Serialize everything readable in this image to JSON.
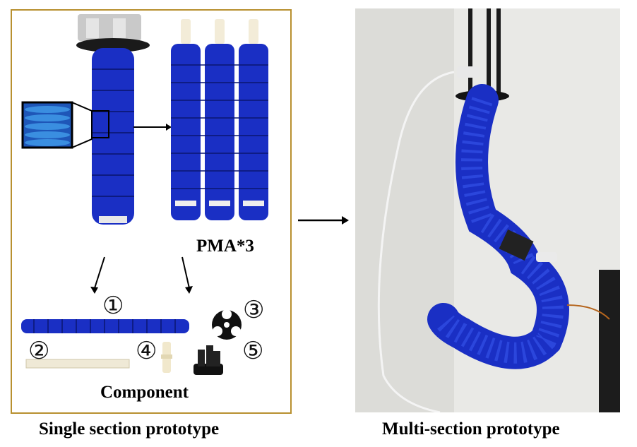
{
  "labels": {
    "pma": "PMA*3",
    "component": "Component",
    "single_caption": "Single section prototype",
    "multi_caption": "Multi-section prototype"
  },
  "component_numbers": [
    "①",
    "②",
    "③",
    "④",
    "⑤"
  ],
  "colors": {
    "frame": "#b8902f",
    "actuator_blue": "#1a2fc4",
    "dark": "#111111"
  }
}
